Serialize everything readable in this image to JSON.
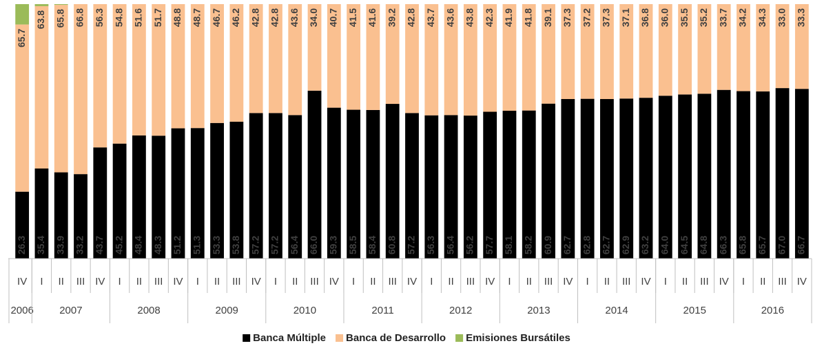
{
  "chart_data": {
    "type": "stacked_bar",
    "groups": [
      {
        "label": "2006",
        "quarters": [
          "IV"
        ]
      },
      {
        "label": "2007",
        "quarters": [
          "I",
          "II",
          "III",
          "IV"
        ]
      },
      {
        "label": "2008",
        "quarters": [
          "I",
          "II",
          "III",
          "IV"
        ]
      },
      {
        "label": "2009",
        "quarters": [
          "I",
          "II",
          "III",
          "IV"
        ]
      },
      {
        "label": "2010",
        "quarters": [
          "I",
          "II",
          "III",
          "IV"
        ]
      },
      {
        "label": "2011",
        "quarters": [
          "I",
          "II",
          "III",
          "IV"
        ]
      },
      {
        "label": "2012",
        "quarters": [
          "I",
          "II",
          "III",
          "IV"
        ]
      },
      {
        "label": "2013",
        "quarters": [
          "I",
          "II",
          "III",
          "IV"
        ]
      },
      {
        "label": "2014",
        "quarters": [
          "I",
          "II",
          "III",
          "IV"
        ]
      },
      {
        "label": "2015",
        "quarters": [
          "I",
          "II",
          "III",
          "IV"
        ]
      },
      {
        "label": "2016",
        "quarters": [
          "I",
          "II",
          "III",
          "IV"
        ]
      }
    ],
    "ylim": [
      0,
      100
    ],
    "series": [
      {
        "name": "Banca Múltiple",
        "color": "#000000",
        "label_color": "#ffffff",
        "values": [
          26.3,
          35.4,
          33.9,
          33.2,
          43.7,
          45.2,
          48.4,
          48.3,
          51.2,
          51.3,
          53.3,
          53.8,
          57.2,
          57.2,
          56.4,
          66.0,
          59.3,
          58.5,
          58.4,
          60.8,
          57.2,
          56.3,
          56.4,
          56.2,
          57.7,
          58.1,
          58.2,
          60.9,
          62.7,
          62.8,
          62.7,
          62.9,
          63.2,
          64.0,
          64.5,
          64.8,
          66.3,
          65.8,
          65.7,
          67.0,
          66.7
        ],
        "value_labels": [
          "26.3",
          "35.4",
          "33.9",
          "33.2",
          "43.7",
          "45.2",
          "48.4",
          "48.3",
          "51.2",
          "51.3",
          "53.3",
          "53.8",
          "57.2",
          "57.2",
          "56.4",
          "66.0",
          "59.3",
          "58.5",
          "58.4",
          "60.8",
          "57.2",
          "56.3",
          "56.4",
          "56.2",
          "57.7",
          "58.1",
          "58.2",
          "60.9",
          "62.7",
          "62.8",
          "62.7",
          "62.9",
          "63.2",
          "64.0",
          "64.5",
          "64.8",
          "66.3",
          "65.8",
          "65.7",
          "67.0",
          "66.7"
        ]
      },
      {
        "name": "Banca de Desarrollo",
        "color": "#fac090",
        "label_color": "#404040",
        "values": [
          65.7,
          63.8,
          65.8,
          66.8,
          56.3,
          54.8,
          51.6,
          51.7,
          48.8,
          48.7,
          46.7,
          46.2,
          42.8,
          42.8,
          43.6,
          34.0,
          40.7,
          41.5,
          41.6,
          39.2,
          42.8,
          43.7,
          43.6,
          43.8,
          42.3,
          41.9,
          41.8,
          39.1,
          37.3,
          37.2,
          37.3,
          37.1,
          36.8,
          36.0,
          35.5,
          35.2,
          33.7,
          34.2,
          34.3,
          33.0,
          33.3
        ],
        "value_labels": [
          "65.7",
          "63.8",
          "65.8",
          "66.8",
          "56.3",
          "54.8",
          "51.6",
          "51.7",
          "48.8",
          "48.7",
          "46.7",
          "46.2",
          "42.8",
          "42.8",
          "43.6",
          "34.0",
          "40.7",
          "41.5",
          "41.6",
          "39.2",
          "42.8",
          "43.7",
          "43.6",
          "43.8",
          "42.3",
          "41.9",
          "41.8",
          "39.1",
          "37.3",
          "37.2",
          "37.3",
          "37.1",
          "36.8",
          "36.0",
          "35.5",
          "35.2",
          "33.7",
          "34.2",
          "34.3",
          "33.0",
          "33.3"
        ]
      },
      {
        "name": "Emisiones Bursátiles",
        "color": "#9bbb59",
        "values": [
          8.0,
          0.8,
          0.3,
          0,
          0,
          0,
          0,
          0,
          0,
          0,
          0,
          0,
          0,
          0,
          0,
          0,
          0,
          0,
          0,
          0,
          0,
          0,
          0,
          0,
          0,
          0,
          0,
          0,
          0,
          0,
          0,
          0,
          0,
          0,
          0,
          0,
          0,
          0,
          0,
          0,
          0
        ]
      }
    ]
  }
}
